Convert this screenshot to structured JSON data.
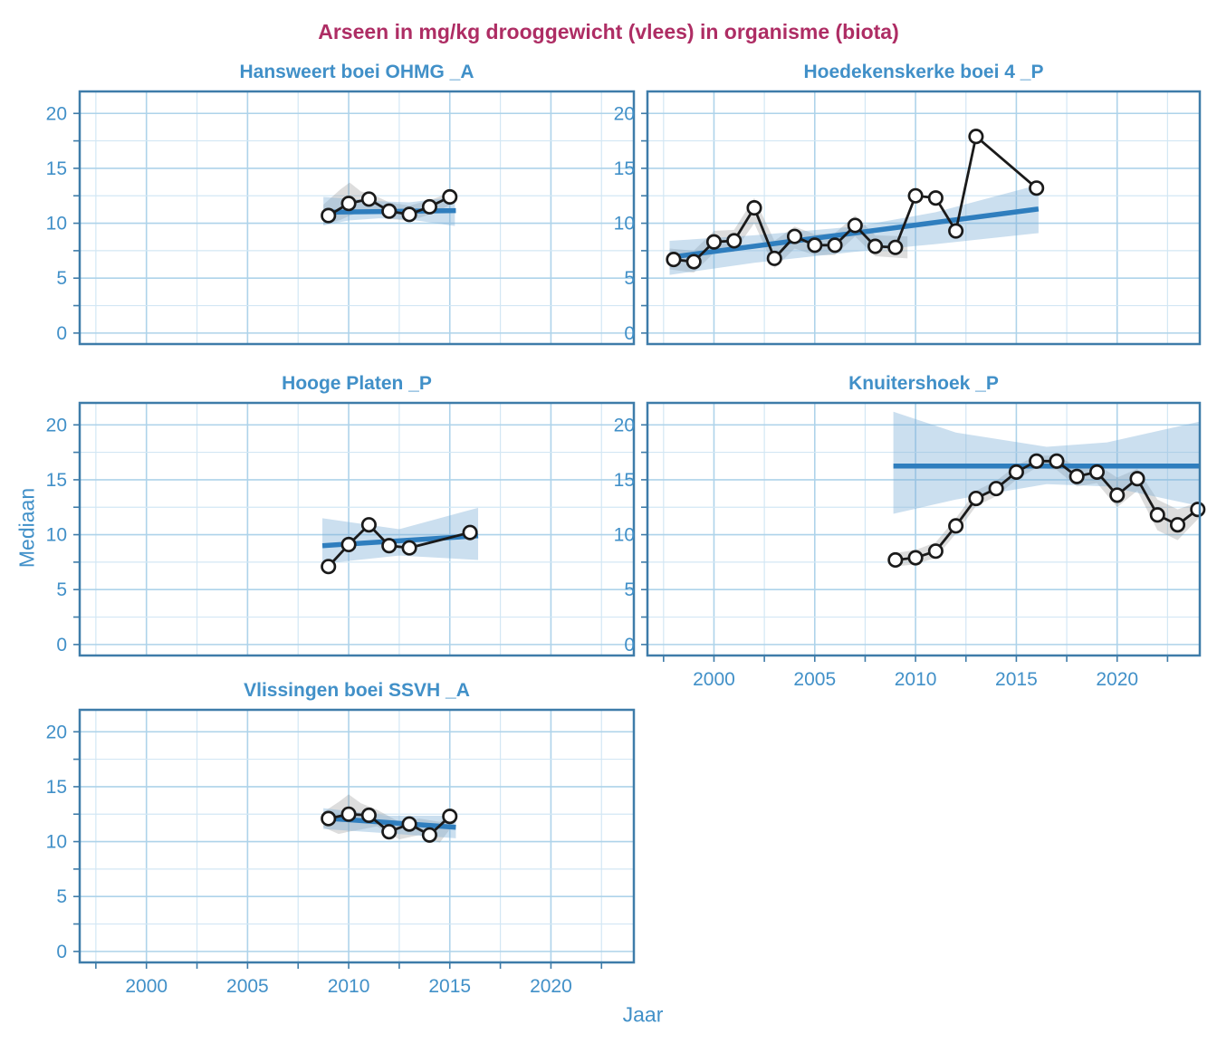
{
  "title": "Arseen in mg/kg drooggewicht (vlees) in organisme (biota)",
  "ylabel": "Mediaan",
  "xlabel": "Jaar",
  "colors": {
    "title": "#ae2d64",
    "axis_text": "#4190c8",
    "panel_border": "#3e7ca9",
    "grid_major": "#aed3ea",
    "grid_minor": "#d3e7f4",
    "trend_line": "#2f7ebe",
    "band_blue": "rgba(126,175,214,0.40)",
    "band_gray": "rgba(120,120,120,0.25)",
    "data_line": "#1a1a1a",
    "marker_fill": "#ffffff"
  },
  "chart_data": {
    "type": "line",
    "title": "Arseen in mg/kg drooggewicht (vlees) in organisme (biota)",
    "xlabel": "Jaar",
    "ylabel": "Mediaan",
    "x_range": [
      1996.7,
      2024.1
    ],
    "y_range": [
      -1,
      22
    ],
    "x_ticks": [
      2000,
      2005,
      2010,
      2015,
      2020
    ],
    "y_ticks": [
      0,
      5,
      10,
      15,
      20
    ],
    "minor_step": 2.5,
    "grid": true,
    "legend": "none",
    "panels": [
      {
        "title": "Hansweert boei OHMG _A",
        "row": 0,
        "col": 0,
        "show_x_labels": false,
        "x": [
          2009,
          2010,
          2011,
          2012,
          2013,
          2014,
          2015
        ],
        "y": [
          10.7,
          11.8,
          12.2,
          11.1,
          10.8,
          11.5,
          12.4
        ],
        "trend": {
          "x": [
            2008.75,
            2015.3
          ],
          "y": [
            11.0,
            11.15
          ]
        },
        "band_blue": {
          "x": [
            2008.75,
            2010,
            2011.5,
            2013,
            2015.25
          ],
          "top": [
            12.4,
            12.25,
            12.0,
            11.9,
            12.4
          ],
          "bottom": [
            9.8,
            10.25,
            10.45,
            10.35,
            9.75
          ]
        },
        "band_gray": {
          "x": [
            2008.75,
            2009.6,
            2010.05,
            2010.6,
            2011.2,
            2012,
            2013,
            2014,
            2015.2
          ],
          "top": [
            11.7,
            13.1,
            13.7,
            12.9,
            12.6,
            11.9,
            11.6,
            12.1,
            12.9
          ],
          "bottom": [
            9.9,
            10.3,
            10.7,
            11.0,
            11.2,
            10.4,
            10.2,
            10.8,
            11.8
          ]
        }
      },
      {
        "title": "Hoedekenskerke boei 4 _P",
        "row": 0,
        "col": 1,
        "show_x_labels": false,
        "x": [
          1998,
          1999,
          2000,
          2001,
          2002,
          2003,
          2004,
          2005,
          2006,
          2007,
          2008,
          2009,
          2010,
          2011,
          2012,
          2013,
          2016
        ],
        "y": [
          6.7,
          6.5,
          8.3,
          8.4,
          11.4,
          6.8,
          8.8,
          8.0,
          8.0,
          9.8,
          7.9,
          7.8,
          12.5,
          12.3,
          9.3,
          17.9,
          13.2
        ],
        "trend": {
          "x": [
            1997.8,
            2016.1
          ],
          "y": [
            6.9,
            11.3
          ]
        },
        "band_blue": {
          "x": [
            1997.8,
            2002,
            2007,
            2011,
            2016.1
          ],
          "top": [
            8.4,
            8.9,
            9.7,
            11.0,
            13.5
          ],
          "bottom": [
            5.3,
            6.4,
            7.4,
            8.1,
            9.1
          ]
        },
        "band_gray": {
          "x": [
            1997.8,
            1999,
            2000,
            2001,
            2002,
            2003,
            2004,
            2005,
            2006,
            2007,
            2008,
            2009.6
          ],
          "top": [
            7.7,
            7.5,
            9.3,
            9.4,
            12.3,
            8.4,
            9.7,
            9.0,
            9.1,
            10.7,
            8.9,
            8.8
          ],
          "bottom": [
            5.8,
            5.5,
            7.3,
            7.4,
            10.0,
            5.9,
            7.7,
            7.1,
            7.1,
            8.8,
            7.0,
            6.8
          ]
        }
      },
      {
        "title": "Hooge Platen _P",
        "row": 1,
        "col": 0,
        "show_x_labels": false,
        "x": [
          2009,
          2010,
          2011,
          2012,
          2013,
          2016
        ],
        "y": [
          7.1,
          9.1,
          10.9,
          9.0,
          8.8,
          10.2
        ],
        "trend": {
          "x": [
            2008.7,
            2016.4
          ],
          "y": [
            9.0,
            9.9
          ]
        },
        "band_blue": {
          "x": [
            2008.7,
            2012.5,
            2016.4
          ],
          "top": [
            11.5,
            10.5,
            12.45
          ],
          "bottom": [
            7.35,
            8.1,
            7.7
          ]
        },
        "band_gray": null
      },
      {
        "title": "Knuitershoek _P",
        "row": 1,
        "col": 1,
        "show_x_labels": true,
        "x": [
          2009,
          2010,
          2011,
          2012,
          2013,
          2014,
          2015,
          2016,
          2017,
          2018,
          2019,
          2020,
          2021,
          2022,
          2023,
          2024
        ],
        "y": [
          7.7,
          7.9,
          8.5,
          10.8,
          13.3,
          14.2,
          15.7,
          16.7,
          16.7,
          15.3,
          15.7,
          13.6,
          15.1,
          11.8,
          10.9,
          12.3
        ],
        "trend": {
          "x": [
            2008.9,
            2024.1
          ],
          "y": [
            16.25,
            16.25
          ]
        },
        "band_blue": {
          "x": [
            2008.9,
            2012,
            2016.5,
            2019.5,
            2024.1
          ],
          "top": [
            21.2,
            19.3,
            18.0,
            18.4,
            20.3
          ],
          "bottom": [
            11.9,
            13.2,
            14.6,
            14.4,
            12.6
          ]
        },
        "band_gray": {
          "x": [
            2008.9,
            2010,
            2011,
            2012,
            2013,
            2014,
            2015,
            2016,
            2017,
            2018,
            2019,
            2020,
            2021,
            2022,
            2023,
            2024.1
          ],
          "top": [
            8.3,
            8.6,
            9.3,
            11.5,
            14.0,
            14.9,
            16.3,
            17.2,
            17.2,
            16.2,
            16.4,
            15.2,
            16.0,
            13.2,
            12.3,
            13.0
          ],
          "bottom": [
            7.1,
            7.3,
            7.9,
            10.1,
            12.6,
            13.5,
            15.0,
            16.1,
            15.9,
            14.4,
            14.7,
            12.5,
            14.0,
            10.4,
            9.5,
            11.6
          ]
        }
      },
      {
        "title": "Vlissingen boei SSVH _A",
        "row": 2,
        "col": 0,
        "show_x_labels": true,
        "x": [
          2009,
          2010,
          2011,
          2012,
          2013,
          2014,
          2015
        ],
        "y": [
          12.1,
          12.5,
          12.4,
          10.9,
          11.6,
          10.6,
          12.3
        ],
        "trend": {
          "x": [
            2008.75,
            2015.3
          ],
          "y": [
            12.15,
            11.3
          ]
        },
        "band_blue": {
          "x": [
            2008.75,
            2012,
            2015.3
          ],
          "top": [
            13.05,
            12.35,
            12.35
          ],
          "bottom": [
            11.15,
            10.75,
            10.3
          ]
        },
        "band_gray": {
          "x": [
            2008.75,
            2009.5,
            2010,
            2010.6,
            2011.4,
            2012.5,
            2013.5,
            2014.5,
            2015.2
          ],
          "top": [
            12.7,
            13.6,
            14.3,
            13.5,
            12.9,
            11.8,
            12.1,
            11.8,
            12.8
          ],
          "bottom": [
            11.3,
            10.7,
            10.9,
            11.1,
            11.4,
            10.2,
            10.6,
            9.9,
            11.6
          ]
        }
      }
    ]
  }
}
